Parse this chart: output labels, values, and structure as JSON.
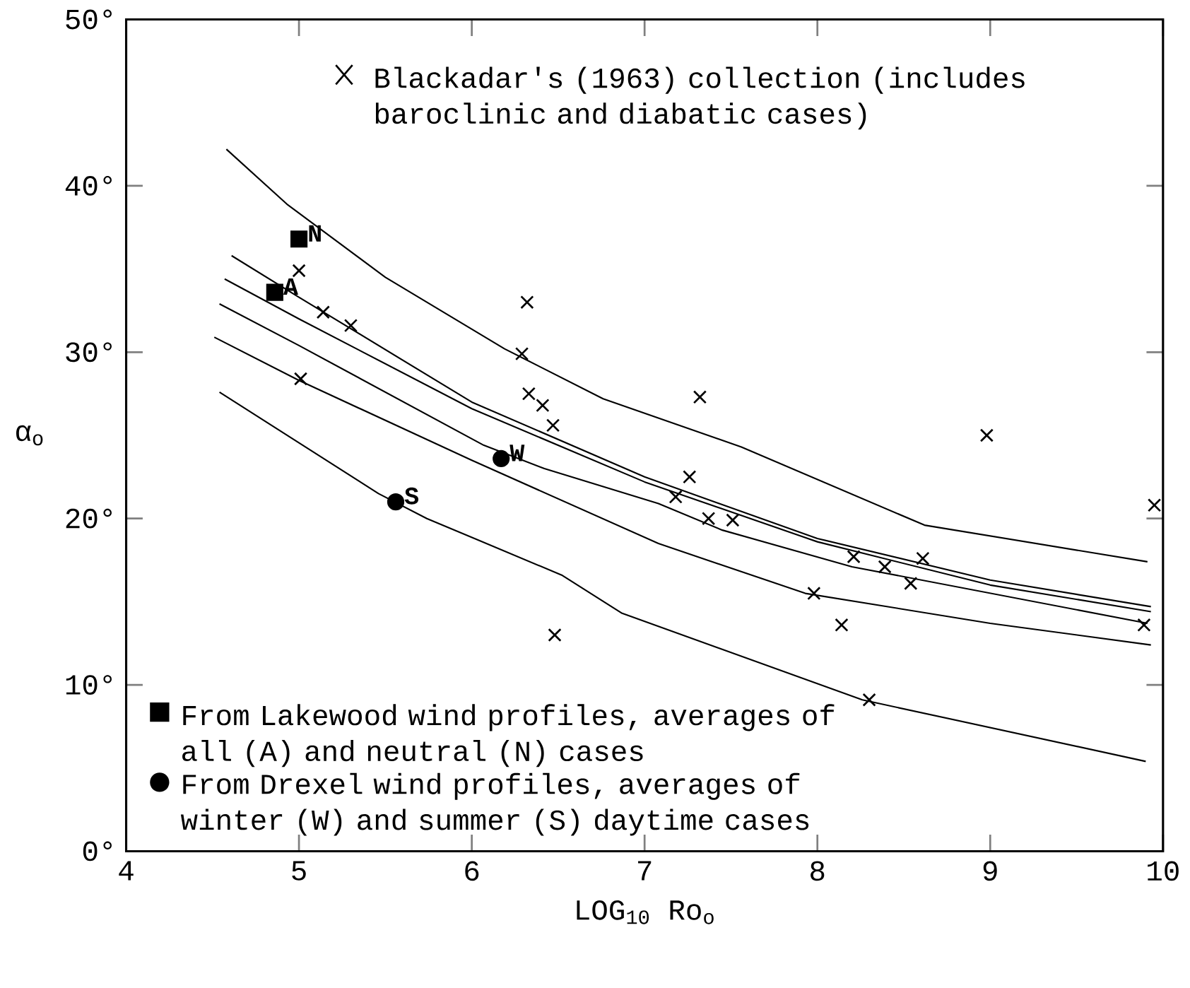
{
  "chart_data": {
    "type": "scatter",
    "xlabel": "LOG$_{10}$ Ro$_{o}$",
    "ylabel": "α$_{o}$",
    "xlim": [
      4,
      10
    ],
    "ylim": [
      0,
      50
    ],
    "xticks": [
      4,
      5,
      6,
      7,
      8,
      9,
      10
    ],
    "yticks": [
      {
        "value": 0,
        "label": "0°"
      },
      {
        "value": 10,
        "label": "10°"
      },
      {
        "value": 20,
        "label": "20°"
      },
      {
        "value": 30,
        "label": "30°"
      },
      {
        "value": 40,
        "label": "40°"
      },
      {
        "value": 50,
        "label": "50°"
      }
    ],
    "legend": "bottom left",
    "series": [
      {
        "name": "Blackadar's (1963) collection (includes baroclinic and diabatic cases)",
        "marker": "cross",
        "color": "#000000",
        "x": [
          5.0,
          5.14,
          5.3,
          5.01,
          6.32,
          6.29,
          6.33,
          6.41,
          6.47,
          7.32,
          7.26,
          7.18,
          7.37,
          7.51,
          8.21,
          8.39,
          8.61,
          8.54,
          7.98,
          8.14,
          6.48,
          8.3,
          8.98,
          9.95,
          9.89
        ],
        "values": [
          34.9,
          32.4,
          31.6,
          28.4,
          33.0,
          29.9,
          27.5,
          26.8,
          25.6,
          27.3,
          22.5,
          21.3,
          20.0,
          19.9,
          17.7,
          17.1,
          17.6,
          16.1,
          15.5,
          13.6,
          13.0,
          9.1,
          25.0,
          20.8,
          13.6
        ]
      },
      {
        "name": "From Lakewood wind profiles, averages of all (A) and neutral (N) cases",
        "marker": "square",
        "color": "#000000",
        "x": [
          4.86,
          5.0
        ],
        "values": [
          33.6,
          36.8
        ]
      },
      {
        "name": "From Drexel wind profiles, averages of winter (W) and summer (S) daytime cases",
        "marker": "circle",
        "color": "#000000",
        "x": [
          6.17,
          5.56
        ],
        "values": [
          23.6,
          21.0
        ]
      },
      {
        "type": "line",
        "marker": "none",
        "color": "#000000",
        "x": [
          4.58,
          4.93,
          5.5,
          6.19,
          6.76,
          7.56,
          8.62,
          9.91
        ],
        "values": [
          42.2,
          38.9,
          34.5,
          30.2,
          27.2,
          24.3,
          19.6,
          17.4
        ]
      },
      {
        "type": "line",
        "marker": "none",
        "color": "#000000",
        "x": [
          4.61,
          5.0,
          6.0,
          7.0,
          8.0,
          9.0,
          9.93
        ],
        "values": [
          35.8,
          33.3,
          27.0,
          22.5,
          18.8,
          16.3,
          14.7
        ]
      },
      {
        "type": "line",
        "marker": "none",
        "color": "#000000",
        "x": [
          4.57,
          5.0,
          6.0,
          7.0,
          8.0,
          9.0,
          9.93
        ],
        "values": [
          34.4,
          32.0,
          26.6,
          22.2,
          18.6,
          16.0,
          14.4
        ]
      },
      {
        "type": "line",
        "marker": "none",
        "color": "#000000",
        "x": [
          4.54,
          5.0,
          6.07,
          6.42,
          7.08,
          7.45,
          8.2,
          9.91
        ],
        "values": [
          32.9,
          30.4,
          24.4,
          23.0,
          20.9,
          19.3,
          17.1,
          13.7
        ]
      },
      {
        "type": "line",
        "marker": "none",
        "color": "#000000",
        "x": [
          4.51,
          5.0,
          6.0,
          7.08,
          7.93,
          9.0,
          9.93
        ],
        "values": [
          30.9,
          28.3,
          23.5,
          18.5,
          15.5,
          13.7,
          12.4
        ]
      },
      {
        "type": "line",
        "marker": "none",
        "color": "#000000",
        "x": [
          4.54,
          5.46,
          5.74,
          6.52,
          6.87,
          8.26,
          9.9
        ],
        "values": [
          27.6,
          21.5,
          20.0,
          16.6,
          14.3,
          9.1,
          5.4
        ]
      }
    ],
    "annotations": [
      {
        "text": "N",
        "x": 5.0,
        "y": 36.8
      },
      {
        "text": "A",
        "x": 4.86,
        "y": 33.6
      },
      {
        "text": "W",
        "x": 6.17,
        "y": 23.6
      },
      {
        "text": "S",
        "x": 5.56,
        "y": 21.0
      }
    ]
  }
}
